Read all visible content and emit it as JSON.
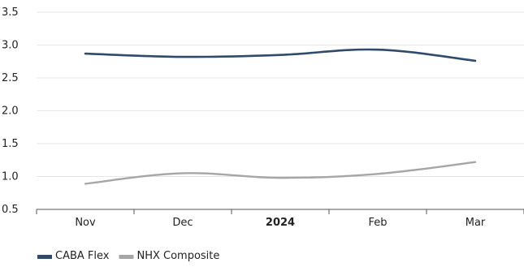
{
  "chart_data": {
    "type": "line",
    "categories": [
      "Nov",
      "Dec",
      "2024",
      "Feb",
      "Mar"
    ],
    "bold_categories": [
      "2024"
    ],
    "yticks": [
      "0.5",
      "1.0",
      "1.5",
      "2.0",
      "2.5",
      "3.0",
      "3.5"
    ],
    "ylim": [
      0.5,
      3.5
    ],
    "grid": true,
    "legend_position": "bottom-left",
    "series": [
      {
        "name": "CABA Flex",
        "color": "#2f4a6b",
        "values": [
          2.87,
          2.82,
          2.85,
          2.93,
          2.76
        ]
      },
      {
        "name": "NHX Composite",
        "color": "#a6a6a6",
        "values": [
          0.89,
          1.05,
          0.98,
          1.04,
          1.22
        ]
      }
    ]
  }
}
